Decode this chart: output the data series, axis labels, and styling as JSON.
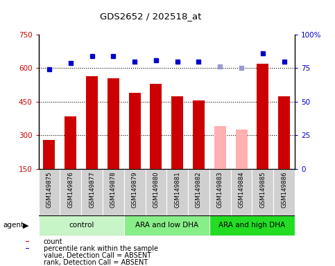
{
  "title": "GDS2652 / 202518_at",
  "samples": [
    "GSM149875",
    "GSM149876",
    "GSM149877",
    "GSM149878",
    "GSM149879",
    "GSM149880",
    "GSM149881",
    "GSM149882",
    "GSM149883",
    "GSM149884",
    "GSM149885",
    "GSM149886"
  ],
  "bar_values": [
    280,
    385,
    565,
    555,
    490,
    530,
    475,
    455,
    340,
    325,
    620,
    475
  ],
  "bar_absent": [
    false,
    false,
    false,
    false,
    false,
    false,
    false,
    false,
    true,
    true,
    false,
    false
  ],
  "percentile_values": [
    74,
    79,
    84,
    84,
    80,
    81,
    80,
    80,
    76,
    75,
    86,
    80
  ],
  "percentile_absent": [
    false,
    false,
    false,
    false,
    false,
    false,
    false,
    false,
    true,
    true,
    false,
    false
  ],
  "groups": [
    {
      "label": "control",
      "start": 0,
      "end": 4,
      "color": "#c8f5c8"
    },
    {
      "label": "ARA and low DHA",
      "start": 4,
      "end": 8,
      "color": "#88ee88"
    },
    {
      "label": "ARA and high DHA",
      "start": 8,
      "end": 12,
      "color": "#22dd22"
    }
  ],
  "ylim_left": [
    150,
    750
  ],
  "ylim_right": [
    0,
    100
  ],
  "yticks_left": [
    150,
    300,
    450,
    600,
    750
  ],
  "yticks_right": [
    0,
    25,
    50,
    75,
    100
  ],
  "bar_color": "#cc0000",
  "bar_absent_color": "#ffb0b0",
  "dot_color": "#0000cc",
  "dot_absent_color": "#9999cc",
  "bar_width": 0.55,
  "left_label_color": "#cc0000",
  "right_label_color": "#0000cc",
  "sample_box_color": "#d0d0d0",
  "legend_items": [
    {
      "label": "count",
      "color": "#cc0000"
    },
    {
      "label": "percentile rank within the sample",
      "color": "#0000cc"
    },
    {
      "label": "value, Detection Call = ABSENT",
      "color": "#ffb0b0"
    },
    {
      "label": "rank, Detection Call = ABSENT",
      "color": "#aaaacc"
    }
  ]
}
